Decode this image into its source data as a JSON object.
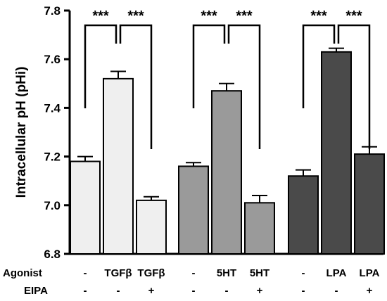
{
  "chart_data": {
    "type": "bar",
    "ylabel": "Intracellular pH (pHi)",
    "ylim": [
      6.8,
      7.8
    ],
    "yticks": [
      "6.8",
      "7.0",
      "7.2",
      "7.4",
      "7.6",
      "7.8"
    ],
    "grid": false,
    "row_labels": {
      "agonist": "Agonist",
      "eipa": "EIPA"
    },
    "significance_label": "***",
    "groups": [
      {
        "color": "#efefef",
        "bars": [
          {
            "value": 7.18,
            "error": 0.02,
            "agonist": "-",
            "eipa": "-"
          },
          {
            "value": 7.52,
            "error": 0.03,
            "agonist": "TGFβ",
            "eipa": "-"
          },
          {
            "value": 7.02,
            "error": 0.015,
            "agonist": "TGFβ",
            "eipa": "+"
          }
        ]
      },
      {
        "color": "#9a9a9a",
        "bars": [
          {
            "value": 7.16,
            "error": 0.015,
            "agonist": "-",
            "eipa": "-"
          },
          {
            "value": 7.47,
            "error": 0.03,
            "agonist": "5HT",
            "eipa": "-"
          },
          {
            "value": 7.01,
            "error": 0.03,
            "agonist": "5HT",
            "eipa": "+"
          }
        ]
      },
      {
        "color": "#4a4a4a",
        "bars": [
          {
            "value": 7.12,
            "error": 0.025,
            "agonist": "-",
            "eipa": "-"
          },
          {
            "value": 7.63,
            "error": 0.015,
            "agonist": "LPA",
            "eipa": "-"
          },
          {
            "value": 7.21,
            "error": 0.03,
            "agonist": "LPA",
            "eipa": "+"
          }
        ]
      }
    ]
  }
}
